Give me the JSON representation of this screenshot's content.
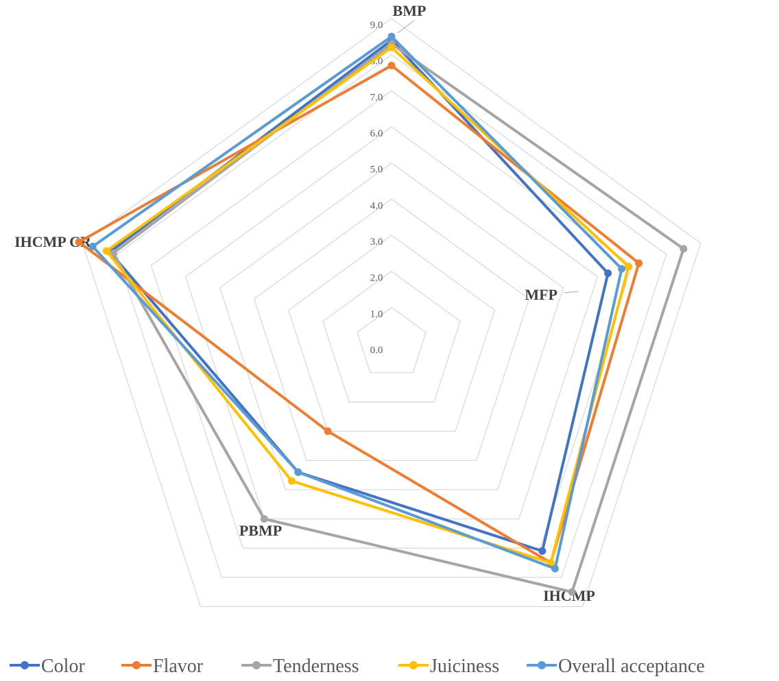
{
  "chart_data": {
    "type": "radar",
    "axes": [
      "BMP",
      "MFP",
      "IHCMP",
      "PBMP",
      "IHCMP CR"
    ],
    "r_min": 0,
    "r_max": 9,
    "ticks": [
      "0.0",
      "1.0",
      "2.0",
      "3.0",
      "4.0",
      "5.0",
      "6.0",
      "7.0",
      "8.0",
      "9.0"
    ],
    "grid": true,
    "legend_position": "bottom",
    "series": [
      {
        "name": "Color",
        "color": "#4472C4",
        "values": [
          8.4,
          6.3,
          7.1,
          4.4,
          8.2
        ]
      },
      {
        "name": "Flavor",
        "color": "#ED7D31",
        "values": [
          7.7,
          7.2,
          7.5,
          3.0,
          9.1
        ]
      },
      {
        "name": "Tenderness",
        "color": "#A5A5A5",
        "values": [
          8.3,
          8.5,
          8.5,
          6.0,
          8.1
        ]
      },
      {
        "name": "Juiciness",
        "color": "#FFC000",
        "values": [
          8.2,
          6.9,
          7.5,
          4.7,
          8.3
        ]
      },
      {
        "name": "Overall acceptance",
        "color": "#5B9BD5",
        "values": [
          8.5,
          6.7,
          7.7,
          4.4,
          8.7
        ]
      }
    ]
  }
}
